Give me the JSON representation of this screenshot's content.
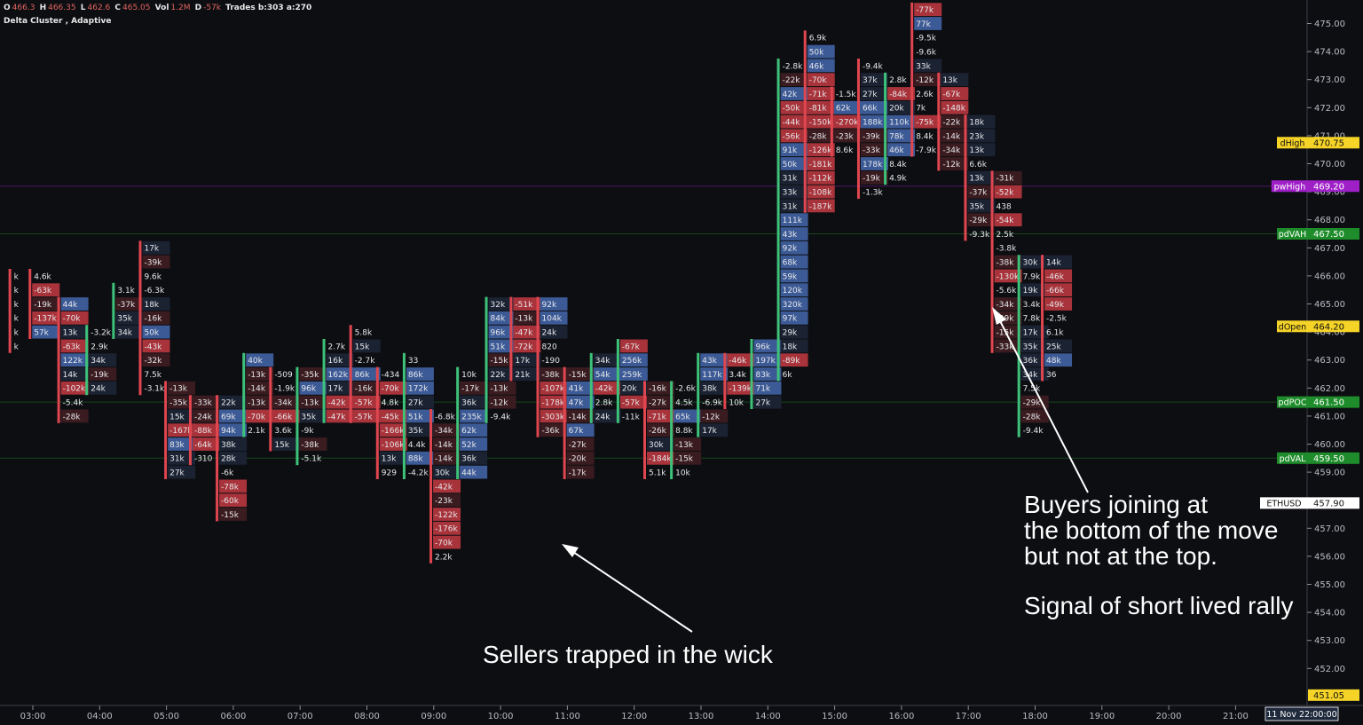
{
  "header": {
    "open_label": "O",
    "open": "466.3",
    "high_label": "H",
    "high": "466.35",
    "low_label": "L",
    "low": "462.6",
    "close_label": "C",
    "close": "465.05",
    "vol_label": "Vol",
    "vol": "1.2M",
    "delta_label": "D",
    "delta": "-57k",
    "trades": "Trades b:303 a:270",
    "indicator": "Delta Cluster , Adaptive"
  },
  "annotations": {
    "buyers": [
      "Buyers joining at",
      "the bottom of the move",
      "but not at the top."
    ],
    "signal": "Signal of short lived rally",
    "sellers": "Sellers trapped in the wick"
  },
  "colors": {
    "background": "#0d0e12",
    "pos_strong": "#3c5a96",
    "pos_weak": "#1b2333",
    "neg_strong": "#a8333a",
    "neg_weak": "#3a1c20",
    "wick_up": "#3ec27a",
    "wick_down": "#e0464f",
    "dHigh": "#f5d327",
    "pwHigh": "#a020c8",
    "pdVAH": "#1e8c2a",
    "dOpen": "#f5d327",
    "pdPOC": "#1e8c2a",
    "pdVAL": "#1e8c2a",
    "bottom_level": "#f5d327"
  },
  "chart_data": {
    "type": "table",
    "title": "Delta Cluster , Adaptive",
    "symbol": "ETHUSD",
    "ylim": [
      450.8,
      475.6
    ],
    "price_ticks": [
      475,
      474,
      473,
      472,
      471,
      470,
      469,
      468,
      467,
      466,
      465,
      464,
      463,
      462,
      461,
      460,
      459,
      457,
      456,
      455,
      454,
      453,
      452
    ],
    "time_labels": [
      "03:00",
      "04:00",
      "05:00",
      "06:00",
      "07:00",
      "08:00",
      "09:00",
      "10:00",
      "11:00",
      "12:00",
      "13:00",
      "14:00",
      "15:00",
      "16:00",
      "17:00",
      "18:00",
      "19:00",
      "20:00",
      "21:00"
    ],
    "time_cursor": "11 Nov 22:00:00",
    "levels": [
      {
        "name": "dHigh",
        "value": "470.75",
        "price": 470.75
      },
      {
        "name": "pwHigh",
        "value": "469.20",
        "price": 469.2
      },
      {
        "name": "pdVAH",
        "value": "467.50",
        "price": 467.5
      },
      {
        "name": "dOpen",
        "value": "464.20",
        "price": 464.2
      },
      {
        "name": "pdPOC",
        "value": "461.50",
        "price": 461.5
      },
      {
        "name": "pdVAL",
        "value": "459.50",
        "price": 459.5
      },
      {
        "name": "ETHUSD",
        "value": "457.90",
        "price": 457.9
      },
      {
        "name": "",
        "value": "451.05",
        "price": 451.05
      }
    ],
    "clusters": [
      {
        "t": -0.35,
        "top": 466.0,
        "dir": "down",
        "cells": [
          "k",
          "k",
          "k",
          "k",
          "k",
          "k"
        ]
      },
      {
        "t": -0.05,
        "top": 466.0,
        "dir": "down",
        "cells": [
          "4.6k",
          "-63k",
          "-19k",
          "-137k",
          "57k"
        ]
      },
      {
        "t": 0.38,
        "top": 465.0,
        "dir": "down",
        "cells": [
          "44k",
          "-70k",
          "13k",
          "-63k",
          "122k",
          "14k",
          "-102k",
          "-5.4k",
          "-28k"
        ]
      },
      {
        "t": 0.8,
        "top": 464.0,
        "dir": "up",
        "cells": [
          "-3.2k",
          "2.9k",
          "34k",
          "-19k",
          "24k"
        ]
      },
      {
        "t": 1.2,
        "top": 465.5,
        "dir": "up",
        "cells": [
          "3.1k",
          "-37k",
          "35k",
          "34k"
        ]
      },
      {
        "t": 1.6,
        "top": 467.0,
        "dir": "down",
        "cells": [
          "17k",
          "-39k",
          "9.6k",
          "-6.3k",
          "18k",
          "-16k",
          "50k",
          "-43k",
          "-32k",
          "7.5k",
          "-3.1k"
        ]
      },
      {
        "t": 1.98,
        "top": 462.0,
        "dir": "down",
        "cells": [
          "-13k",
          "-35k",
          "15k",
          "-167k",
          "83k",
          "31k",
          "27k"
        ]
      },
      {
        "t": 2.35,
        "top": 461.5,
        "dir": "down",
        "cells": [
          "-33k",
          "-24k",
          "-88k",
          "-64k",
          "-310"
        ]
      },
      {
        "t": 2.75,
        "top": 461.5,
        "dir": "down",
        "cells": [
          "22k",
          "69k",
          "94k",
          "38k",
          "28k",
          "-6k",
          "-78k",
          "-60k",
          "-15k"
        ]
      },
      {
        "t": 3.15,
        "top": 463.0,
        "dir": "up",
        "cells": [
          "40k",
          "-13k",
          "-14k",
          "-13k",
          "-70k",
          "2.1k"
        ]
      },
      {
        "t": 3.55,
        "top": 462.5,
        "dir": "down",
        "cells": [
          "-509",
          "-1.9k",
          "-34k",
          "-66k",
          "3.6k",
          "15k"
        ]
      },
      {
        "t": 3.95,
        "top": 462.5,
        "dir": "up",
        "cells": [
          "-35k",
          "96k",
          "-13k",
          "35k",
          "-9k",
          "-38k",
          "-5.1k"
        ]
      },
      {
        "t": 4.35,
        "top": 463.5,
        "dir": "up",
        "cells": [
          "2.7k",
          "16k",
          "162k",
          "17k",
          "-42k",
          "-47k"
        ]
      },
      {
        "t": 4.75,
        "top": 464.0,
        "dir": "down",
        "cells": [
          "5.8k",
          "15k",
          "-2.7k",
          "86k",
          "-16k",
          "-57k",
          "-57k"
        ]
      },
      {
        "t": 5.15,
        "top": 462.5,
        "dir": "down",
        "cells": [
          "-434",
          "-70k",
          "4.8k",
          "-45k",
          "-166k",
          "-106k",
          "13k",
          "929"
        ]
      },
      {
        "t": 5.55,
        "top": 463.0,
        "dir": "up",
        "cells": [
          "33",
          "86k",
          "172k",
          "27k",
          "51k",
          "35k",
          "4.4k",
          "88k",
          "-4.2k"
        ]
      },
      {
        "t": 5.95,
        "top": 461.0,
        "dir": "down",
        "cells": [
          "-6.8k",
          "-34k",
          "-14k",
          "-14k",
          "30k",
          "-42k",
          "-23k",
          "-122k",
          "-176k",
          "-70k",
          "2.2k"
        ]
      },
      {
        "t": 6.35,
        "top": 462.5,
        "dir": "up",
        "cells": [
          "10k",
          "-17k",
          "36k",
          "235k",
          "62k",
          "52k",
          "36k",
          "44k"
        ]
      },
      {
        "t": 6.78,
        "top": 465.0,
        "dir": "up",
        "cells": [
          "32k",
          "84k",
          "96k",
          "51k",
          "-15k",
          "22k",
          "-13k",
          "-12k",
          "-9.4k"
        ]
      },
      {
        "t": 7.15,
        "top": 465.0,
        "dir": "down",
        "cells": [
          "-51k",
          "-13k",
          "-47k",
          "-72k",
          "17k",
          "21k"
        ]
      },
      {
        "t": 7.55,
        "top": 465.0,
        "dir": "down",
        "cells": [
          "92k",
          "104k",
          "24k",
          "820",
          "-190",
          "-38k",
          "-107k",
          "-178k",
          "-303k",
          "-36k"
        ]
      },
      {
        "t": 7.95,
        "top": 462.5,
        "dir": "down",
        "cells": [
          "-15k",
          "41k",
          "47k",
          "-14k",
          "67k",
          "-27k",
          "-20k",
          "-17k"
        ]
      },
      {
        "t": 8.35,
        "top": 463.0,
        "dir": "up",
        "cells": [
          "34k",
          "54k",
          "-42k",
          "2.8k",
          "24k"
        ]
      },
      {
        "t": 8.75,
        "top": 463.5,
        "dir": "up",
        "cells": [
          "-67k",
          "256k",
          "259k",
          "20k",
          "-57k",
          "-11k"
        ]
      },
      {
        "t": 9.15,
        "top": 462.0,
        "dir": "down",
        "cells": [
          "-16k",
          "-27k",
          "-71k",
          "-26k",
          "30k",
          "-184k",
          "5.1k"
        ]
      },
      {
        "t": 9.55,
        "top": 462.0,
        "dir": "up",
        "cells": [
          "-2.6k",
          "4.5k",
          "65k",
          "8.8k",
          "-13k",
          "-15k",
          "10k"
        ]
      },
      {
        "t": 9.95,
        "top": 463.0,
        "dir": "up",
        "cells": [
          "43k",
          "117k",
          "38k",
          "-6.9k",
          "-12k",
          "17k"
        ]
      },
      {
        "t": 10.35,
        "top": 463.0,
        "dir": "down",
        "cells": [
          "-46k",
          "3.4k",
          "-139k",
          "10k"
        ]
      },
      {
        "t": 10.75,
        "top": 463.5,
        "dir": "up",
        "cells": [
          "96k",
          "197k",
          "83k",
          "71k",
          "27k"
        ]
      },
      {
        "t": 11.15,
        "top": 473.5,
        "dir": "up",
        "cells": [
          "-2.8k",
          "-22k",
          "42k",
          "-50k",
          "-44k",
          "-56k",
          "91k",
          "50k",
          "31k",
          "33k",
          "31k",
          "111k",
          "43k",
          "92k",
          "68k",
          "59k",
          "120k",
          "320k",
          "97k",
          "29k",
          "18k",
          "-89k",
          "6k"
        ]
      },
      {
        "t": 11.55,
        "top": 474.5,
        "dir": "down",
        "cells": [
          "6.9k",
          "50k",
          "46k",
          "-70k",
          "-71k",
          "-81k",
          "-150k",
          "-28k",
          "-126k",
          "-181k",
          "-112k",
          "-108k",
          "-187k"
        ]
      },
      {
        "t": 11.95,
        "top": 472.5,
        "dir": "down",
        "cells": [
          "-1.5k",
          "62k",
          "-270k",
          "-23k",
          "8.6k"
        ]
      },
      {
        "t": 12.35,
        "top": 473.5,
        "dir": "down",
        "cells": [
          "-9.4k",
          "37k",
          "27k",
          "66k",
          "188k",
          "-39k",
          "-33k",
          "178k",
          "-19k",
          "-1.3k"
        ]
      },
      {
        "t": 12.75,
        "top": 473.0,
        "dir": "up",
        "cells": [
          "2.8k",
          "-84k",
          "20k",
          "110k",
          "78k",
          "46k",
          "8.4k",
          "4.9k"
        ]
      },
      {
        "t": 13.15,
        "top": 475.5,
        "dir": "down",
        "cells": [
          "-77k",
          "77k",
          "-9.5k",
          "-9.6k",
          "33k",
          "-12k",
          "2.6k",
          "7k",
          "-75k",
          "8.4k",
          "-7.9k"
        ]
      },
      {
        "t": 13.55,
        "top": 473.0,
        "dir": "down",
        "cells": [
          "13k",
          "-67k",
          "-148k",
          "-22k",
          "-14k",
          "-34k",
          "-12k"
        ]
      },
      {
        "t": 13.95,
        "top": 471.5,
        "dir": "down",
        "cells": [
          "18k",
          "23k",
          "13k",
          "6.6k",
          "13k",
          "-37k",
          "35k",
          "-29k",
          "-9.3k"
        ]
      },
      {
        "t": 14.35,
        "top": 469.5,
        "dir": "down",
        "cells": [
          "-31k",
          "-52k",
          "438",
          "-54k",
          "2.5k",
          "-3.8k",
          "-38k",
          "-130k",
          "-5.6k",
          "-34k",
          "-29k",
          "-15k",
          "-33k"
        ]
      },
      {
        "t": 14.75,
        "top": 466.5,
        "dir": "up",
        "cells": [
          "30k",
          "7.9k",
          "19k",
          "3.4k",
          "7.8k",
          "17k",
          "35k",
          "36k",
          "34k",
          "7.5k",
          "-29k",
          "-28k",
          "-9.4k"
        ]
      },
      {
        "t": 15.1,
        "top": 466.5,
        "dir": "down",
        "cells": [
          "14k",
          "-46k",
          "-66k",
          "-49k",
          "-2.5k",
          "6.1k",
          "25k",
          "48k",
          "36"
        ]
      }
    ]
  }
}
